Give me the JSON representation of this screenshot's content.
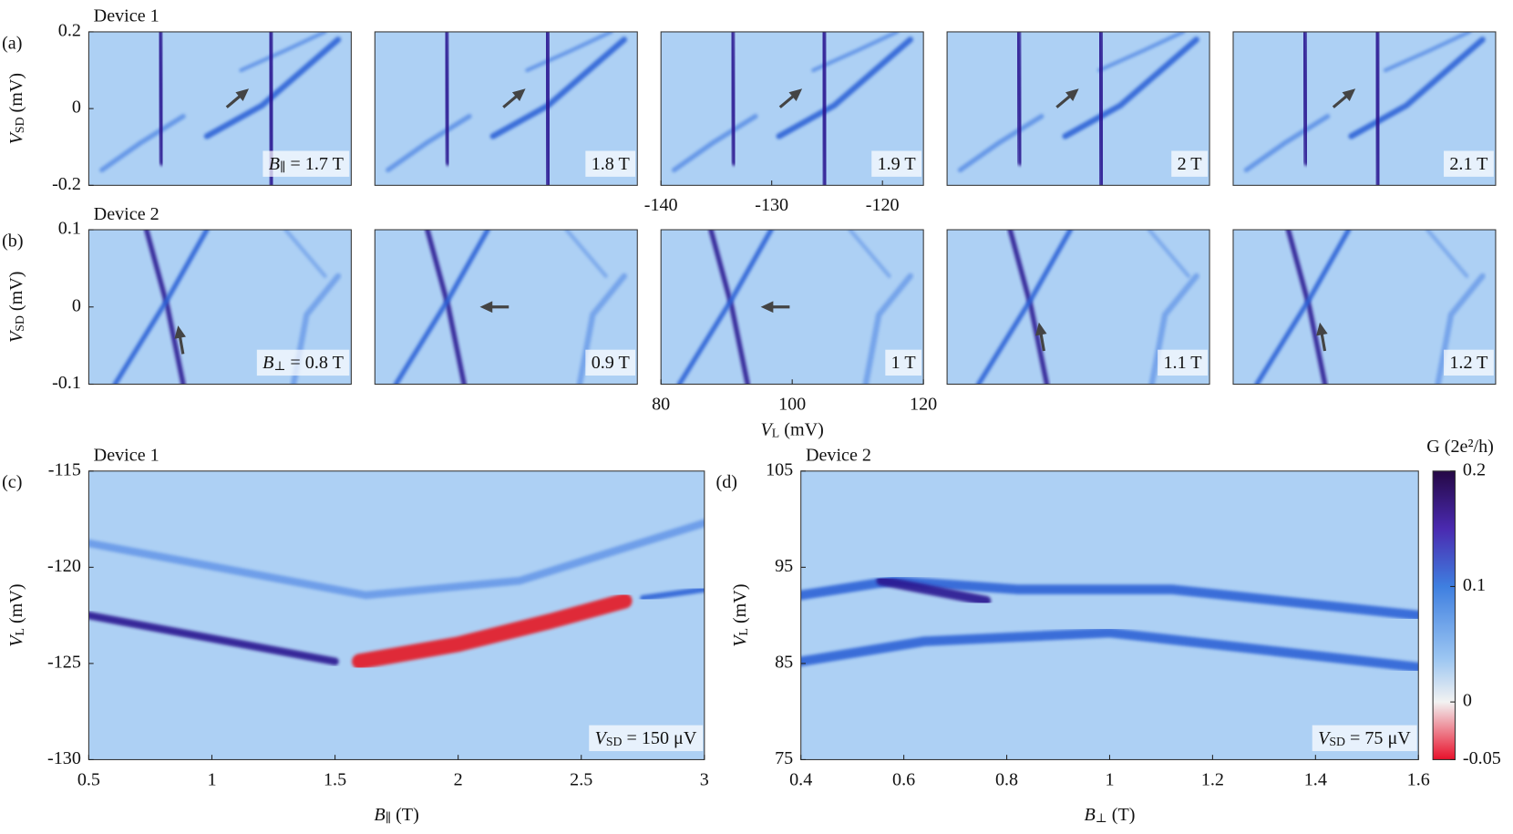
{
  "chart_data": [
    {
      "type": "heatmap",
      "panel_label": "(a)",
      "device": "Device 1",
      "ylabel": {
        "symbol": "V",
        "sub": "SD",
        "unit": " (mV)"
      },
      "ylim": [
        -0.2,
        0.2
      ],
      "yticks": [
        0.2,
        0,
        -0.2
      ],
      "annotation": {
        "symbol": "B",
        "sub": "∥",
        "text": " = 1.7 T"
      }
    },
    {
      "type": "heatmap",
      "annotation": {
        "text": "1.8 T"
      }
    },
    {
      "type": "heatmap",
      "annotation": {
        "text": "1.9 T"
      },
      "xlim": [
        -140,
        -116.3
      ],
      "xticks": [
        -140,
        -130,
        -120
      ]
    },
    {
      "type": "heatmap",
      "annotation": {
        "text": "2 T"
      }
    },
    {
      "type": "heatmap",
      "annotation": {
        "text": "2.1 T"
      }
    },
    {
      "type": "heatmap",
      "panel_label": "(b)",
      "device": "Device 2",
      "ylabel": {
        "symbol": "V",
        "sub": "SD",
        "unit": " (mV)"
      },
      "ylim": [
        -0.1,
        0.1
      ],
      "yticks": [
        0.1,
        0,
        -0.1
      ],
      "annotation": {
        "symbol": "B",
        "sub": "⊥",
        "text": " = 0.8 T"
      }
    },
    {
      "type": "heatmap",
      "annotation": {
        "text": "0.9 T"
      }
    },
    {
      "type": "heatmap",
      "annotation": {
        "text": "1 T"
      },
      "xlim": [
        80,
        120
      ],
      "xticks": [
        80,
        100,
        120
      ],
      "xlabel": {
        "symbol": "V",
        "sub": "L",
        "unit": " (mV)"
      }
    },
    {
      "type": "heatmap",
      "annotation": {
        "text": "1.1 T"
      }
    },
    {
      "type": "heatmap",
      "annotation": {
        "text": "1.2 T"
      }
    },
    {
      "type": "heatmap",
      "panel_label": "(c)",
      "device": "Device 1",
      "xlabel": {
        "symbol": "B",
        "sub": "∥",
        "unit": " (T)"
      },
      "ylabel": {
        "symbol": "V",
        "sub": "L",
        "unit": " (mV)"
      },
      "xlim": [
        0.5,
        3
      ],
      "xticks": [
        0.5,
        1,
        1.5,
        2,
        2.5,
        3
      ],
      "ylim": [
        -130,
        -115
      ],
      "yticks": [
        -115,
        -120,
        -125,
        -130
      ],
      "annotation": {
        "symbol": "V",
        "sub": "SD",
        "text": " = 150 μV"
      }
    },
    {
      "type": "heatmap",
      "panel_label": "(d)",
      "device": "Device 2",
      "xlabel": {
        "symbol": "B",
        "sub": "⊥",
        "unit": " (T)"
      },
      "ylabel": {
        "symbol": "V",
        "sub": "L",
        "unit": " (mV)"
      },
      "xlim": [
        0.4,
        1.6
      ],
      "xticks": [
        0.4,
        0.6,
        0.8,
        1,
        1.2,
        1.4,
        1.6
      ],
      "ylim": [
        75,
        105
      ],
      "yticks": [
        105,
        95,
        85,
        75
      ],
      "annotation": {
        "symbol": "V",
        "sub": "SD",
        "text": " = 75 μV"
      },
      "colorbar": {
        "label": "G (2e²/h)",
        "lim": [
          -0.05,
          0.2
        ],
        "ticks": [
          0.2,
          0.1,
          0,
          -0.05
        ]
      }
    }
  ]
}
